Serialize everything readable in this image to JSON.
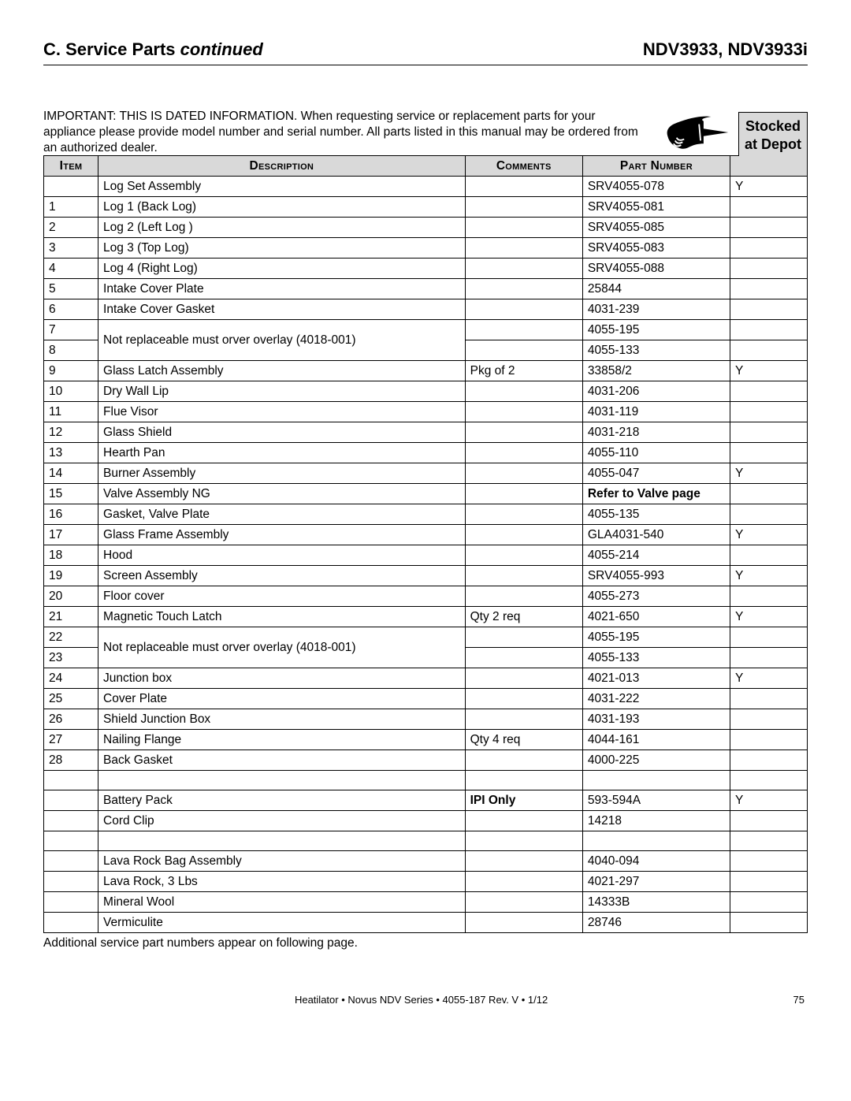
{
  "header": {
    "section_label": "C. Service Parts",
    "section_suffix": "continued",
    "models": "NDV3933, NDV3933i"
  },
  "intro": "IMPORTANT: THIS IS DATED INFORMATION. When requesting service or replacement parts for your appliance please provide model number and serial number. All parts listed in this manual may be ordered from an authorized dealer.",
  "stocked_box_line1": "Stocked",
  "stocked_box_line2": "at Depot",
  "columns": {
    "item": "Item",
    "desc": "Description",
    "comments": "Comments",
    "part": "Part Number"
  },
  "rows": [
    {
      "item": "",
      "desc": "Log Set Assembly",
      "indent": 0,
      "comments": "",
      "part": "SRV4055-078",
      "stock": "Y"
    },
    {
      "item": "1",
      "desc": "Log 1   (Back Log)",
      "indent": 1,
      "comments": "",
      "part": "SRV4055-081",
      "stock": ""
    },
    {
      "item": "2",
      "desc": "Log 2   (Left Log )",
      "indent": 1,
      "comments": "",
      "part": "SRV4055-085",
      "stock": ""
    },
    {
      "item": "3",
      "desc": "Log 3  (Top Log)",
      "indent": 1,
      "comments": "",
      "part": "SRV4055-083",
      "stock": ""
    },
    {
      "item": "4",
      "desc": "Log 4  (Right Log)",
      "indent": 1,
      "comments": "",
      "part": "SRV4055-088",
      "stock": ""
    },
    {
      "item": "5",
      "desc": "Intake Cover Plate",
      "indent": 0,
      "comments": "",
      "part": "25844",
      "stock": ""
    },
    {
      "item": "6",
      "desc": "Intake Cover Gasket",
      "indent": 0,
      "comments": "",
      "part": "4031-239",
      "stock": ""
    },
    {
      "item": "7",
      "desc_merge_start": true,
      "desc": "Not replaceable must orver overlay (4018-001)",
      "indent": 0,
      "comments": "",
      "part": "4055-195",
      "stock": ""
    },
    {
      "item": "8",
      "desc_merged": true,
      "comments": "",
      "part": "4055-133",
      "stock": ""
    },
    {
      "item": "9",
      "desc": "Glass Latch Assembly",
      "indent": 0,
      "comments": "Pkg of 2",
      "part": "33858/2",
      "stock": "Y"
    },
    {
      "item": "10",
      "desc": "Dry Wall Lip",
      "indent": 0,
      "comments": "",
      "part": "4031-206",
      "stock": ""
    },
    {
      "item": "11",
      "desc": "Flue Visor",
      "indent": 0,
      "comments": "",
      "part": "4031-119",
      "stock": ""
    },
    {
      "item": "12",
      "desc": "Glass Shield",
      "indent": 0,
      "comments": "",
      "part": "4031-218",
      "stock": ""
    },
    {
      "item": "13",
      "desc": "Hearth Pan",
      "indent": 0,
      "comments": "",
      "part": "4055-110",
      "stock": ""
    },
    {
      "item": "14",
      "desc": "Burner Assembly",
      "indent": 0,
      "comments": "",
      "part": "4055-047",
      "stock": "Y"
    },
    {
      "item": "15",
      "desc": "Valve Assembly NG",
      "indent": 0,
      "comments": "",
      "part": "Refer to Valve page",
      "part_bold": true,
      "stock": ""
    },
    {
      "item": "16",
      "desc": "Gasket, Valve Plate",
      "indent": 0,
      "comments": "",
      "part": "4055-135",
      "stock": ""
    },
    {
      "item": "17",
      "desc": "Glass Frame Assembly",
      "indent": 0,
      "comments": "",
      "part": "GLA4031-540",
      "stock": "Y"
    },
    {
      "item": "18",
      "desc": "Hood",
      "indent": 0,
      "comments": "",
      "part": "4055-214",
      "stock": ""
    },
    {
      "item": "19",
      "desc": "Screen Assembly",
      "indent": 0,
      "comments": "",
      "part": "SRV4055-993",
      "stock": "Y"
    },
    {
      "item": "20",
      "desc": "Floor cover",
      "indent": 0,
      "comments": "",
      "part": "4055-273",
      "stock": ""
    },
    {
      "item": "21",
      "desc": "Magnetic Touch Latch",
      "indent": 0,
      "comments": "Qty 2 req",
      "part": "4021-650",
      "stock": "Y"
    },
    {
      "item": "22",
      "desc_merge_start": true,
      "desc": "Not replaceable must orver overlay (4018-001)",
      "indent": 0,
      "comments": "",
      "part": "4055-195",
      "stock": ""
    },
    {
      "item": "23",
      "desc_merged": true,
      "comments": "",
      "part": "4055-133",
      "stock": ""
    },
    {
      "item": "24",
      "desc": "Junction box",
      "indent": 0,
      "comments": "",
      "part": "4021-013",
      "stock": "Y"
    },
    {
      "item": "25",
      "desc": "Cover Plate",
      "indent": 0,
      "comments": "",
      "part": "4031-222",
      "stock": ""
    },
    {
      "item": "26",
      "desc": "Shield Junction Box",
      "indent": 0,
      "comments": "",
      "part": "4031-193",
      "stock": ""
    },
    {
      "item": "27",
      "desc": "Nailing Flange",
      "indent": 0,
      "comments": "Qty 4 req",
      "part": "4044-161",
      "stock": ""
    },
    {
      "item": "28",
      "desc": "Back Gasket",
      "indent": 0,
      "comments": "",
      "part": "4000-225",
      "stock": ""
    },
    {
      "item": "",
      "desc": "",
      "indent": 0,
      "comments": "",
      "part": "",
      "stock": ""
    },
    {
      "item": "",
      "desc": "Battery Pack",
      "indent": 0,
      "comments": "IPI Only",
      "comments_bold": true,
      "part": "593-594A",
      "stock": "Y"
    },
    {
      "item": "",
      "desc": "Cord Clip",
      "indent": 0,
      "comments": "",
      "part": "14218",
      "stock": ""
    },
    {
      "item": "",
      "desc": "",
      "indent": 0,
      "comments": "",
      "part": "",
      "stock": ""
    },
    {
      "item": "",
      "desc": "Lava Rock Bag Assembly",
      "indent": 0,
      "comments": "",
      "part": "4040-094",
      "stock": ""
    },
    {
      "item": "",
      "desc": "Lava Rock, 3 Lbs",
      "indent": 2,
      "comments": "",
      "part": "4021-297",
      "stock": ""
    },
    {
      "item": "",
      "desc": "Mineral Wool",
      "indent": 2,
      "comments": "",
      "part": "14333B",
      "stock": ""
    },
    {
      "item": "",
      "desc": "Vermiculite",
      "indent": 2,
      "comments": "",
      "part": "28746",
      "stock": ""
    }
  ],
  "footnote": "Additional service part numbers appear on following page.",
  "footer": {
    "center": "Heatilator  •  Novus NDV Series  •  4055-187 Rev. V  •  1/12",
    "page": "75"
  }
}
